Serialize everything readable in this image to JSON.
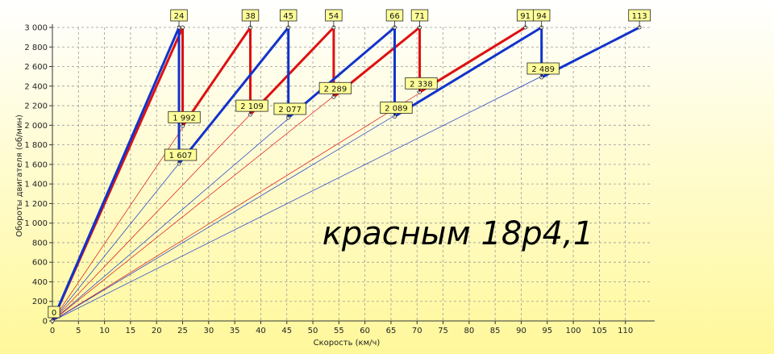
{
  "chart_data": {
    "type": "line",
    "title": "",
    "xlabel": "Скорость (км/ч)",
    "ylabel": "Обороты двигателя (об/мин)",
    "xlim": [
      0,
      115
    ],
    "ylim": [
      0,
      3000
    ],
    "x_ticks": [
      "0",
      "5",
      "10",
      "15",
      "20",
      "25",
      "30",
      "35",
      "40",
      "45",
      "50",
      "55",
      "60",
      "65",
      "70",
      "75",
      "80",
      "85",
      "90",
      "95",
      "100",
      "105",
      "110"
    ],
    "y_ticks": [
      "0",
      "200",
      "400",
      "600",
      "800",
      "1 000",
      "1 200",
      "1 400",
      "1 600",
      "1 800",
      "2 000",
      "2 200",
      "2 400",
      "2 600",
      "2 800",
      "3 000"
    ],
    "grid": true,
    "annotation": "красным 18р4,1",
    "colors": {
      "red": "#dd1111",
      "blue": "#1133cc",
      "bg_top": "#ffffff",
      "bg_bottom": "#fff89a",
      "label_bg": "#ffff99"
    },
    "gear_lines": [
      {
        "color": "blue",
        "x_end": 24.3
      },
      {
        "color": "red",
        "x_end": 25.0
      },
      {
        "color": "red",
        "x_end": 38.0
      },
      {
        "color": "blue",
        "x_end": 45.3
      },
      {
        "color": "red",
        "x_end": 54.0
      },
      {
        "color": "blue",
        "x_end": 65.7
      },
      {
        "color": "red",
        "x_end": 70.5
      },
      {
        "color": "red",
        "x_end": 90.8
      },
      {
        "color": "blue",
        "x_end": 93.9
      },
      {
        "color": "blue",
        "x_end": 112.7
      }
    ],
    "series": [
      {
        "color": "red",
        "points": [
          [
            0,
            0
          ],
          [
            25,
            3000
          ],
          [
            25,
            1992
          ],
          [
            38,
            3000
          ],
          [
            38,
            2109
          ],
          [
            54,
            3000
          ],
          [
            54,
            2289
          ],
          [
            70.5,
            3000
          ],
          [
            70.5,
            2338
          ],
          [
            90.8,
            3000
          ]
        ]
      },
      {
        "color": "blue",
        "points": [
          [
            0,
            0
          ],
          [
            24.3,
            3000
          ],
          [
            24.3,
            1607
          ],
          [
            45.3,
            3000
          ],
          [
            45.3,
            2077
          ],
          [
            65.7,
            3000
          ],
          [
            65.7,
            2089
          ],
          [
            93.9,
            3000
          ],
          [
            93.9,
            2489
          ],
          [
            112.7,
            3000
          ]
        ]
      }
    ],
    "labels": [
      {
        "text": "24",
        "x": 24.3,
        "y": 3000,
        "pos": "top"
      },
      {
        "text": "38",
        "x": 38,
        "y": 3000,
        "pos": "top"
      },
      {
        "text": "45",
        "x": 45.3,
        "y": 3000,
        "pos": "top"
      },
      {
        "text": "54",
        "x": 54,
        "y": 3000,
        "pos": "top"
      },
      {
        "text": "66",
        "x": 65.7,
        "y": 3000,
        "pos": "top"
      },
      {
        "text": "71",
        "x": 70.5,
        "y": 3000,
        "pos": "top"
      },
      {
        "text": "91",
        "x": 90.8,
        "y": 3000,
        "pos": "top"
      },
      {
        "text": "94",
        "x": 93.9,
        "y": 3000,
        "pos": "top"
      },
      {
        "text": "113",
        "x": 112.7,
        "y": 3000,
        "pos": "top"
      },
      {
        "text": "1 992",
        "x": 25,
        "y": 1992,
        "pos": "above"
      },
      {
        "text": "1 607",
        "x": 24.3,
        "y": 1607,
        "pos": "above"
      },
      {
        "text": "2 109",
        "x": 38,
        "y": 2109,
        "pos": "above"
      },
      {
        "text": "2 077",
        "x": 45.3,
        "y": 2077,
        "pos": "above"
      },
      {
        "text": "2 289",
        "x": 54,
        "y": 2289,
        "pos": "above"
      },
      {
        "text": "2 338",
        "x": 70.5,
        "y": 2338,
        "pos": "above"
      },
      {
        "text": "2 089",
        "x": 65.7,
        "y": 2089,
        "pos": "above"
      },
      {
        "text": "2 489",
        "x": 93.9,
        "y": 2489,
        "pos": "above"
      },
      {
        "text": "0",
        "x": 0,
        "y": 0,
        "pos": "above"
      }
    ]
  }
}
